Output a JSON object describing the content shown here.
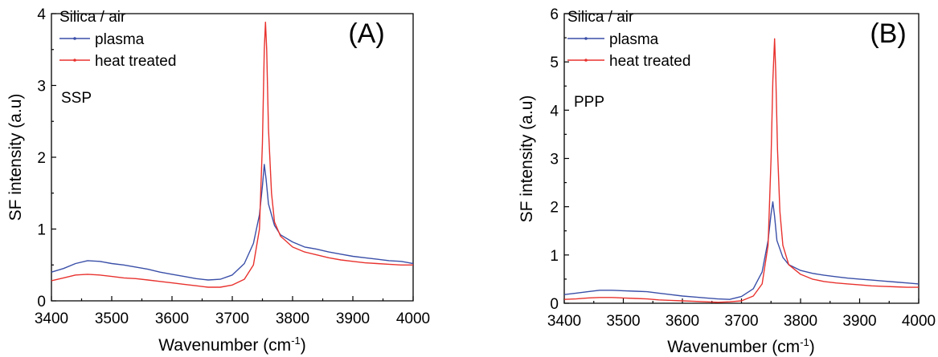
{
  "chart_data": [
    {
      "type": "line",
      "panel_label": "(A)",
      "polarization": "SSP",
      "legend_title": "Silica / air",
      "xlabel": "Wavenumber (cm",
      "xlabel_sup": "-1",
      "xlabel_end": ")",
      "ylabel": "SF intensity (a.u)",
      "xlim": [
        3400,
        4000
      ],
      "ylim": [
        0,
        4
      ],
      "xticks": [
        "3400",
        "3500",
        "3600",
        "3700",
        "3800",
        "3900",
        "4000"
      ],
      "yticks": [
        "0",
        "1",
        "2",
        "3",
        "4"
      ],
      "legend_position": "top-left",
      "series": [
        {
          "name": "plasma",
          "color": "#3a4fa8",
          "points": [
            [
              3400,
              0.4
            ],
            [
              3420,
              0.45
            ],
            [
              3440,
              0.52
            ],
            [
              3460,
              0.56
            ],
            [
              3480,
              0.55
            ],
            [
              3500,
              0.52
            ],
            [
              3520,
              0.5
            ],
            [
              3540,
              0.47
            ],
            [
              3560,
              0.44
            ],
            [
              3580,
              0.4
            ],
            [
              3600,
              0.37
            ],
            [
              3620,
              0.34
            ],
            [
              3640,
              0.31
            ],
            [
              3660,
              0.29
            ],
            [
              3680,
              0.3
            ],
            [
              3700,
              0.36
            ],
            [
              3720,
              0.52
            ],
            [
              3735,
              0.8
            ],
            [
              3745,
              1.2
            ],
            [
              3750,
              1.6
            ],
            [
              3753,
              1.9
            ],
            [
              3756,
              1.7
            ],
            [
              3760,
              1.35
            ],
            [
              3770,
              1.05
            ],
            [
              3780,
              0.92
            ],
            [
              3800,
              0.82
            ],
            [
              3820,
              0.75
            ],
            [
              3840,
              0.72
            ],
            [
              3860,
              0.68
            ],
            [
              3880,
              0.65
            ],
            [
              3900,
              0.62
            ],
            [
              3920,
              0.6
            ],
            [
              3940,
              0.58
            ],
            [
              3960,
              0.56
            ],
            [
              3980,
              0.55
            ],
            [
              4000,
              0.52
            ]
          ]
        },
        {
          "name": "heat treated",
          "color": "#e8322e",
          "points": [
            [
              3400,
              0.28
            ],
            [
              3420,
              0.32
            ],
            [
              3440,
              0.36
            ],
            [
              3460,
              0.37
            ],
            [
              3480,
              0.36
            ],
            [
              3500,
              0.34
            ],
            [
              3520,
              0.32
            ],
            [
              3540,
              0.31
            ],
            [
              3560,
              0.29
            ],
            [
              3580,
              0.27
            ],
            [
              3600,
              0.25
            ],
            [
              3620,
              0.23
            ],
            [
              3640,
              0.21
            ],
            [
              3660,
              0.19
            ],
            [
              3680,
              0.19
            ],
            [
              3700,
              0.22
            ],
            [
              3720,
              0.3
            ],
            [
              3735,
              0.5
            ],
            [
              3745,
              1.0
            ],
            [
              3750,
              2.2
            ],
            [
              3753,
              3.5
            ],
            [
              3755,
              3.88
            ],
            [
              3757,
              3.5
            ],
            [
              3760,
              2.4
            ],
            [
              3765,
              1.5
            ],
            [
              3770,
              1.1
            ],
            [
              3780,
              0.9
            ],
            [
              3800,
              0.75
            ],
            [
              3820,
              0.68
            ],
            [
              3840,
              0.64
            ],
            [
              3860,
              0.6
            ],
            [
              3880,
              0.57
            ],
            [
              3900,
              0.55
            ],
            [
              3920,
              0.53
            ],
            [
              3940,
              0.52
            ],
            [
              3960,
              0.51
            ],
            [
              3980,
              0.5
            ],
            [
              4000,
              0.5
            ]
          ]
        }
      ]
    },
    {
      "type": "line",
      "panel_label": "(B)",
      "polarization": "PPP",
      "legend_title": "Silica / air",
      "xlabel": "Wavenumber (cm",
      "xlabel_sup": "-1",
      "xlabel_end": ")",
      "ylabel": "SF intensity (a.u)",
      "xlim": [
        3400,
        4000
      ],
      "ylim": [
        0,
        6
      ],
      "xticks": [
        "3400",
        "3500",
        "3600",
        "3700",
        "3800",
        "3900",
        "4000"
      ],
      "yticks": [
        "0",
        "1",
        "2",
        "3",
        "4",
        "5",
        "6"
      ],
      "legend_position": "top-left",
      "series": [
        {
          "name": "plasma",
          "color": "#3a4fa8",
          "points": [
            [
              3400,
              0.18
            ],
            [
              3420,
              0.21
            ],
            [
              3440,
              0.24
            ],
            [
              3460,
              0.27
            ],
            [
              3480,
              0.27
            ],
            [
              3500,
              0.26
            ],
            [
              3520,
              0.25
            ],
            [
              3540,
              0.24
            ],
            [
              3560,
              0.21
            ],
            [
              3580,
              0.18
            ],
            [
              3600,
              0.15
            ],
            [
              3620,
              0.13
            ],
            [
              3640,
              0.11
            ],
            [
              3660,
              0.09
            ],
            [
              3680,
              0.08
            ],
            [
              3700,
              0.14
            ],
            [
              3720,
              0.3
            ],
            [
              3735,
              0.65
            ],
            [
              3745,
              1.3
            ],
            [
              3750,
              1.85
            ],
            [
              3753,
              2.1
            ],
            [
              3756,
              1.8
            ],
            [
              3760,
              1.3
            ],
            [
              3770,
              0.95
            ],
            [
              3780,
              0.8
            ],
            [
              3800,
              0.68
            ],
            [
              3820,
              0.62
            ],
            [
              3840,
              0.58
            ],
            [
              3860,
              0.55
            ],
            [
              3880,
              0.52
            ],
            [
              3900,
              0.5
            ],
            [
              3920,
              0.48
            ],
            [
              3940,
              0.46
            ],
            [
              3960,
              0.44
            ],
            [
              3980,
              0.42
            ],
            [
              4000,
              0.4
            ]
          ]
        },
        {
          "name": "heat treated",
          "color": "#e8322e",
          "points": [
            [
              3400,
              0.08
            ],
            [
              3420,
              0.09
            ],
            [
              3440,
              0.11
            ],
            [
              3460,
              0.12
            ],
            [
              3480,
              0.12
            ],
            [
              3500,
              0.11
            ],
            [
              3520,
              0.1
            ],
            [
              3540,
              0.09
            ],
            [
              3560,
              0.07
            ],
            [
              3580,
              0.06
            ],
            [
              3600,
              0.05
            ],
            [
              3620,
              0.04
            ],
            [
              3640,
              0.03
            ],
            [
              3660,
              0.02
            ],
            [
              3680,
              0.03
            ],
            [
              3700,
              0.05
            ],
            [
              3720,
              0.15
            ],
            [
              3735,
              0.4
            ],
            [
              3745,
              1.2
            ],
            [
              3750,
              3.0
            ],
            [
              3753,
              4.6
            ],
            [
              3756,
              5.48
            ],
            [
              3758,
              4.8
            ],
            [
              3761,
              3.2
            ],
            [
              3765,
              1.9
            ],
            [
              3770,
              1.2
            ],
            [
              3780,
              0.8
            ],
            [
              3800,
              0.6
            ],
            [
              3820,
              0.5
            ],
            [
              3840,
              0.45
            ],
            [
              3860,
              0.42
            ],
            [
              3880,
              0.4
            ],
            [
              3900,
              0.38
            ],
            [
              3920,
              0.36
            ],
            [
              3940,
              0.35
            ],
            [
              3960,
              0.34
            ],
            [
              3980,
              0.33
            ],
            [
              4000,
              0.33
            ]
          ]
        }
      ]
    }
  ]
}
